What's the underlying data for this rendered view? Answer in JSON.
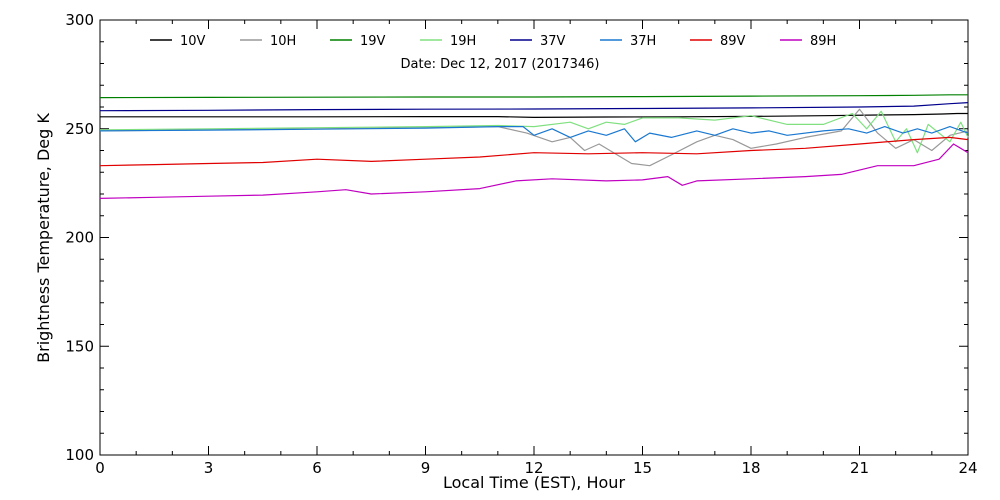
{
  "chart_data": {
    "type": "line",
    "title": "",
    "annotation": "Date: Dec 12, 2017 (2017346)",
    "xlabel": "Local Time (EST), Hour",
    "ylabel": "Brightness Temperature, Deg K",
    "xlim": [
      0,
      24
    ],
    "ylim": [
      100,
      300
    ],
    "xticks": [
      0,
      3,
      6,
      9,
      12,
      15,
      18,
      21,
      24
    ],
    "yticks": [
      100,
      150,
      200,
      250,
      300
    ],
    "grid": false,
    "legend_position": "top",
    "series": [
      {
        "name": "10V",
        "color": "#000000",
        "points": [
          [
            0,
            255.5
          ],
          [
            3,
            255.5
          ],
          [
            6,
            255.5
          ],
          [
            9,
            255.6
          ],
          [
            11,
            255.6
          ],
          [
            12,
            255.2
          ],
          [
            14,
            255.4
          ],
          [
            16,
            255.5
          ],
          [
            18,
            255.7
          ],
          [
            20,
            256
          ],
          [
            21.5,
            256.3
          ],
          [
            22.5,
            256.5
          ],
          [
            23.3,
            256.8
          ],
          [
            23.7,
            257
          ],
          [
            24,
            257
          ]
        ]
      },
      {
        "name": "10H",
        "color": "#999999",
        "points": [
          [
            0,
            249
          ],
          [
            3,
            249.5
          ],
          [
            6,
            250
          ],
          [
            9,
            250.5
          ],
          [
            11,
            251
          ],
          [
            11.8,
            248
          ],
          [
            12.5,
            244
          ],
          [
            13,
            246
          ],
          [
            13.4,
            240
          ],
          [
            13.8,
            243
          ],
          [
            14.3,
            238
          ],
          [
            14.7,
            234
          ],
          [
            15.2,
            233
          ],
          [
            15.8,
            238
          ],
          [
            16.5,
            244
          ],
          [
            17,
            247
          ],
          [
            17.5,
            245
          ],
          [
            18,
            241
          ],
          [
            18.7,
            243
          ],
          [
            19.5,
            246
          ],
          [
            20.5,
            249
          ],
          [
            21,
            259
          ],
          [
            21.5,
            248
          ],
          [
            22,
            241
          ],
          [
            22.5,
            245
          ],
          [
            23,
            240
          ],
          [
            23.5,
            247
          ],
          [
            24,
            249
          ]
        ]
      },
      {
        "name": "19V",
        "color": "#008000",
        "points": [
          [
            0,
            264.3
          ],
          [
            3,
            264.4
          ],
          [
            6,
            264.5
          ],
          [
            9,
            264.6
          ],
          [
            12,
            264.6
          ],
          [
            15,
            264.8
          ],
          [
            18,
            265
          ],
          [
            21,
            265.2
          ],
          [
            22.5,
            265.4
          ],
          [
            23.5,
            265.6
          ],
          [
            24,
            265.6
          ]
        ]
      },
      {
        "name": "19H",
        "color": "#80e080",
        "points": [
          [
            0,
            249.5
          ],
          [
            3,
            250
          ],
          [
            6,
            250.5
          ],
          [
            9,
            251
          ],
          [
            11,
            251.5
          ],
          [
            12,
            251
          ],
          [
            13,
            253
          ],
          [
            13.5,
            250
          ],
          [
            14,
            253
          ],
          [
            14.5,
            252
          ],
          [
            15,
            255
          ],
          [
            16,
            255
          ],
          [
            17,
            254
          ],
          [
            18,
            256
          ],
          [
            19,
            252
          ],
          [
            20,
            252
          ],
          [
            20.8,
            257
          ],
          [
            21.2,
            250
          ],
          [
            21.6,
            258
          ],
          [
            22,
            244
          ],
          [
            22.3,
            250
          ],
          [
            22.6,
            239
          ],
          [
            22.9,
            252
          ],
          [
            23.2,
            248
          ],
          [
            23.5,
            244
          ],
          [
            23.8,
            253
          ],
          [
            24,
            246
          ]
        ]
      },
      {
        "name": "37V",
        "color": "#00008b",
        "points": [
          [
            0,
            258.3
          ],
          [
            3,
            258.5
          ],
          [
            6,
            258.8
          ],
          [
            9,
            259
          ],
          [
            12,
            259.1
          ],
          [
            15,
            259.3
          ],
          [
            18,
            259.6
          ],
          [
            21,
            260
          ],
          [
            22.5,
            260.4
          ],
          [
            23.5,
            261.5
          ],
          [
            24,
            262
          ]
        ]
      },
      {
        "name": "37H",
        "color": "#1a78d0",
        "points": [
          [
            0,
            249
          ],
          [
            3,
            249.4
          ],
          [
            6,
            249.8
          ],
          [
            9,
            250.3
          ],
          [
            11,
            251
          ],
          [
            11.7,
            251
          ],
          [
            12,
            247
          ],
          [
            12.5,
            250
          ],
          [
            13,
            246
          ],
          [
            13.5,
            249
          ],
          [
            14,
            247
          ],
          [
            14.5,
            250
          ],
          [
            14.8,
            244
          ],
          [
            15.2,
            248
          ],
          [
            15.8,
            246
          ],
          [
            16.5,
            249
          ],
          [
            17,
            247
          ],
          [
            17.5,
            250
          ],
          [
            18,
            248
          ],
          [
            18.5,
            249
          ],
          [
            19,
            247
          ],
          [
            20,
            249
          ],
          [
            20.7,
            250
          ],
          [
            21.2,
            248
          ],
          [
            21.7,
            251
          ],
          [
            22.2,
            248
          ],
          [
            22.6,
            250
          ],
          [
            23,
            248
          ],
          [
            23.5,
            251
          ],
          [
            24,
            248
          ]
        ]
      },
      {
        "name": "89V",
        "color": "#e00000",
        "points": [
          [
            0,
            233
          ],
          [
            1.5,
            233.5
          ],
          [
            3,
            234
          ],
          [
            4.5,
            234.5
          ],
          [
            6,
            236
          ],
          [
            7.5,
            235
          ],
          [
            9,
            236
          ],
          [
            10.5,
            237
          ],
          [
            12,
            239
          ],
          [
            13.5,
            238.5
          ],
          [
            15,
            239
          ],
          [
            16.5,
            238.5
          ],
          [
            18,
            240
          ],
          [
            19.5,
            241
          ],
          [
            21,
            243
          ],
          [
            22.5,
            245
          ],
          [
            23.5,
            246
          ],
          [
            24,
            245
          ]
        ]
      },
      {
        "name": "89H",
        "color": "#c000c0",
        "points": [
          [
            0,
            218
          ],
          [
            1.5,
            218.5
          ],
          [
            3,
            219
          ],
          [
            4.5,
            219.5
          ],
          [
            6,
            221
          ],
          [
            6.8,
            222
          ],
          [
            7.5,
            220
          ],
          [
            9,
            221
          ],
          [
            10.5,
            222.5
          ],
          [
            11.5,
            226
          ],
          [
            12.5,
            227
          ],
          [
            14,
            226
          ],
          [
            15,
            226.5
          ],
          [
            15.7,
            228
          ],
          [
            16.1,
            224
          ],
          [
            16.5,
            226
          ],
          [
            18,
            227
          ],
          [
            19.5,
            228
          ],
          [
            20.5,
            229
          ],
          [
            21.5,
            233
          ],
          [
            22.5,
            233
          ],
          [
            23.2,
            236
          ],
          [
            23.6,
            243
          ],
          [
            24,
            239
          ]
        ]
      }
    ]
  }
}
